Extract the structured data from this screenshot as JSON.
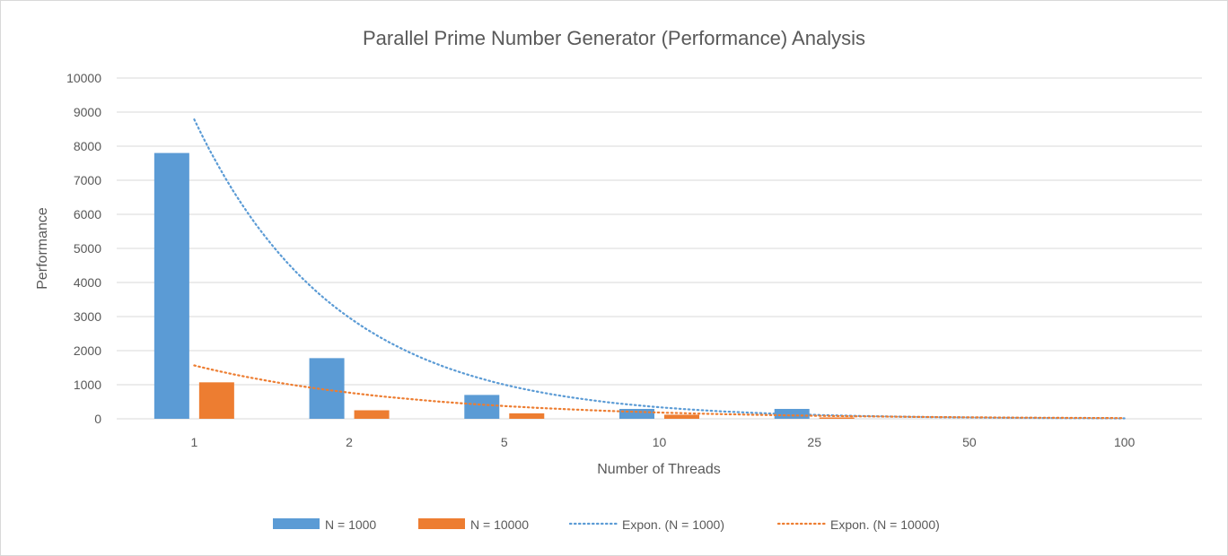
{
  "chart_data": {
    "type": "bar",
    "title": "Parallel Prime Number Generator (Performance) Analysis",
    "xlabel": "Number of Threads",
    "ylabel": "Performance",
    "categories": [
      "1",
      "2",
      "5",
      "10",
      "25",
      "50",
      "100"
    ],
    "ylim": [
      0,
      10000
    ],
    "yticks": [
      0,
      1000,
      2000,
      3000,
      4000,
      5000,
      6000,
      7000,
      8000,
      9000,
      10000
    ],
    "grid": true,
    "legend_position": "bottom",
    "series": [
      {
        "name": "N = 1000",
        "color": "#5b9bd5",
        "values": [
          7800,
          1780,
          700,
          290,
          290,
          0,
          0
        ]
      },
      {
        "name": "N = 10000",
        "color": "#ed7d31",
        "values": [
          1070,
          250,
          160,
          120,
          40,
          0,
          0
        ]
      }
    ],
    "trendlines": [
      {
        "name": "Expon.  (N = 1000)",
        "type": "exponential",
        "color": "#5b9bd5",
        "a": 26000,
        "b": 1.085
      },
      {
        "name": "Expon.  (N = 10000)",
        "type": "exponential",
        "color": "#ed7d31",
        "a": 3200,
        "b": 0.715
      }
    ]
  }
}
